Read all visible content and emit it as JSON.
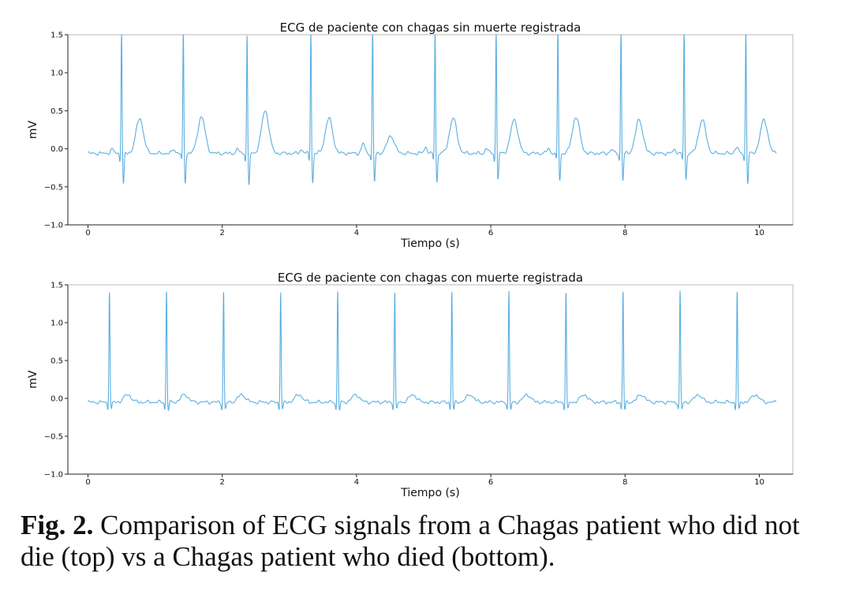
{
  "chart_data": [
    {
      "type": "line",
      "title": "ECG de paciente con chagas sin muerte registrada",
      "xlabel": "Tiempo (s)",
      "ylabel": "mV",
      "xlim": [
        -0.3,
        10.5
      ],
      "ylim": [
        -1.0,
        1.5
      ],
      "xticks": [
        0,
        2,
        4,
        6,
        8,
        10
      ],
      "xtick_labels": [
        "0",
        "2",
        "4",
        "6",
        "8",
        "10"
      ],
      "yticks": [
        -1.0,
        -0.5,
        0.0,
        0.5,
        1.0,
        1.5
      ],
      "ytick_labels": [
        "−1.0",
        "−0.5",
        "0.0",
        "0.5",
        "1.0",
        "1.5"
      ],
      "grid": false,
      "line_color": "#5aaee0",
      "x_start": 0.0,
      "x_end": 10.25,
      "baseline": -0.06,
      "beat_times": [
        0.5,
        1.42,
        2.37,
        3.32,
        4.24,
        5.17,
        6.08,
        7.0,
        7.94,
        8.88,
        9.8
      ],
      "r_peaks": [
        1.45,
        1.45,
        1.4,
        1.45,
        1.5,
        1.45,
        1.45,
        1.5,
        1.45,
        1.5,
        1.45
      ],
      "s_troughs": [
        -0.47,
        -0.45,
        -0.49,
        -0.44,
        -0.44,
        -0.44,
        -0.4,
        -0.42,
        -0.42,
        -0.41,
        -0.45
      ],
      "t_waves": [
        0.4,
        0.42,
        0.5,
        0.4,
        0.17,
        0.4,
        0.38,
        0.42,
        0.38,
        0.38,
        0.38
      ],
      "p_waves": [
        0.05,
        0.05,
        0.05,
        0.05,
        0.13,
        0.08,
        0.06,
        0.06,
        0.05,
        0.05,
        0.08
      ]
    },
    {
      "type": "line",
      "title": "ECG de paciente con chagas con muerte registrada",
      "xlabel": "Tiempo (s)",
      "ylabel": "mV",
      "xlim": [
        -0.3,
        10.5
      ],
      "ylim": [
        -1.0,
        1.5
      ],
      "xticks": [
        0,
        2,
        4,
        6,
        8,
        10
      ],
      "xtick_labels": [
        "0",
        "2",
        "4",
        "6",
        "8",
        "10"
      ],
      "yticks": [
        -1.0,
        -0.5,
        0.0,
        0.5,
        1.0,
        1.5
      ],
      "ytick_labels": [
        "−1.0",
        "−0.5",
        "0.0",
        "0.5",
        "1.0",
        "1.5"
      ],
      "grid": false,
      "line_color": "#5aaee0",
      "x_start": 0.0,
      "x_end": 10.25,
      "baseline": -0.05,
      "beat_times": [
        0.32,
        1.17,
        2.02,
        2.87,
        3.72,
        4.57,
        5.42,
        6.27,
        7.12,
        7.97,
        8.82,
        9.67
      ],
      "r_peaks": [
        1.33,
        1.33,
        1.32,
        1.32,
        1.32,
        1.32,
        1.32,
        1.32,
        1.32,
        1.32,
        1.32,
        1.32
      ],
      "s_troughs": [
        -0.15,
        -0.15,
        -0.15,
        -0.15,
        -0.15,
        -0.15,
        -0.15,
        -0.15,
        -0.15,
        -0.15,
        -0.15,
        -0.15
      ],
      "t_waves": [
        0.05,
        0.05,
        0.05,
        0.05,
        0.05,
        0.05,
        0.05,
        0.05,
        0.05,
        0.05,
        0.05,
        0.05
      ],
      "p_waves": [
        0.0,
        0.0,
        0.0,
        0.0,
        0.0,
        0.0,
        0.0,
        0.0,
        0.0,
        0.0,
        0.0,
        0.0
      ]
    }
  ],
  "caption": {
    "label": "Fig. 2.",
    "text": "Comparison of ECG signals from a Chagas patient who did not die (top) vs a Chagas patient who died (bottom)."
  }
}
